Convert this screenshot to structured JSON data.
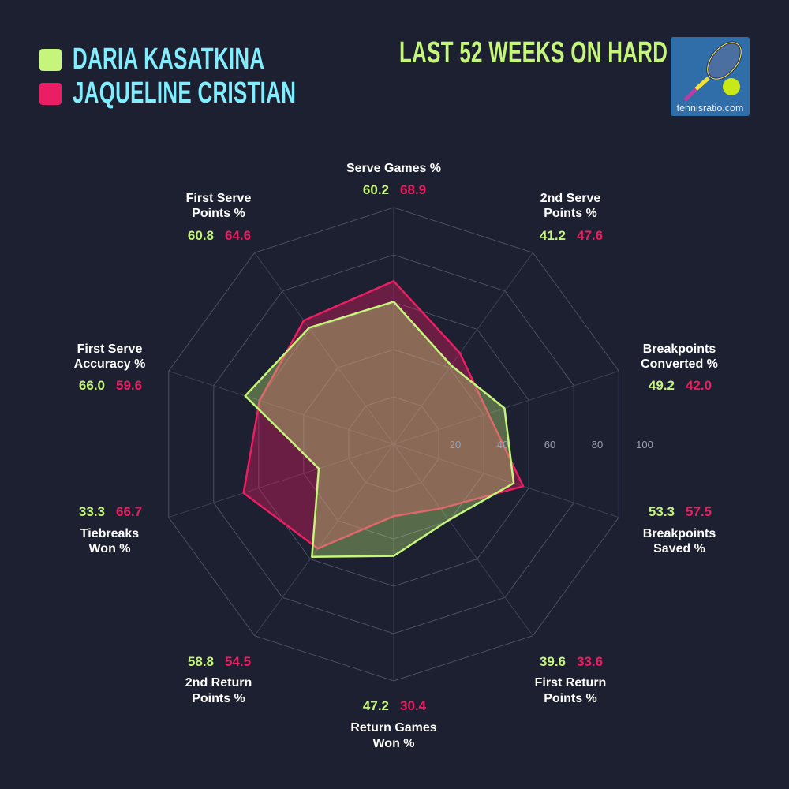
{
  "legend": [
    {
      "name": "DARIA KASATKINA",
      "color": "#c5f57a"
    },
    {
      "name": "JAQUELINE CRISTIAN",
      "color": "#e91e63"
    }
  ],
  "title": "LAST 52 WEEKS ON HARD",
  "logo": {
    "text": "tennisratio.com",
    "icon": "tennis-racket-ball-icon"
  },
  "chart_data": {
    "type": "radar",
    "axes": [
      [
        "Serve Games %"
      ],
      [
        "2nd Serve",
        "Points %"
      ],
      [
        "Breakpoints",
        "Converted %"
      ],
      [
        "Breakpoints",
        "Saved %"
      ],
      [
        "First Return",
        "Points %"
      ],
      [
        "Return Games",
        "Won %"
      ],
      [
        "2nd Return",
        "Points %"
      ],
      [
        "Tiebreaks",
        "Won %"
      ],
      [
        "First Serve",
        "Accuracy %"
      ],
      [
        "First Serve",
        "Points %"
      ]
    ],
    "range": [
      0,
      100
    ],
    "ticks": [
      20,
      40,
      60,
      80,
      100
    ],
    "grid": true,
    "series": [
      {
        "name": "DARIA KASATKINA",
        "color": "#c5f57a",
        "values": [
          60.2,
          41.2,
          49.2,
          53.3,
          39.6,
          47.2,
          58.8,
          33.3,
          66.0,
          60.8
        ]
      },
      {
        "name": "JAQUELINE CRISTIAN",
        "color": "#e91e63",
        "values": [
          68.9,
          47.6,
          42.0,
          57.5,
          33.6,
          30.4,
          54.5,
          66.7,
          59.6,
          64.6
        ]
      }
    ]
  }
}
